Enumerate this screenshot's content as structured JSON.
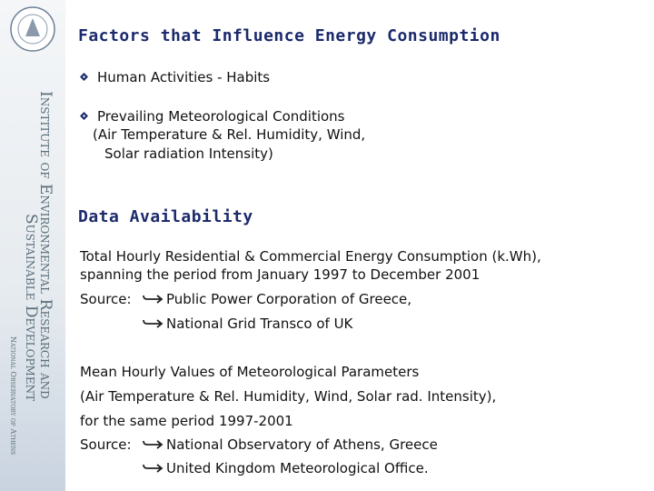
{
  "sidebar": {
    "institute_line1": "Institute of Environmental Research and",
    "institute_line2": "Sustainable Development",
    "observatory": "National Observatory of Athens"
  },
  "title": "Factors that Influence Energy Consumption",
  "factors": [
    {
      "lines": [
        "Human Activities - Habits"
      ]
    },
    {
      "lines": [
        "Prevailing Meteorological Conditions",
        "(Air Temperature & Rel. Humidity, Wind,",
        "Solar radiation Intensity)"
      ]
    }
  ],
  "section_title": "Data Availability",
  "blocks": [
    {
      "lines": [
        "Total Hourly Residential & Commercial Energy Consumption (k.Wh),",
        "spanning the period from January 1997 to December 2001"
      ],
      "source_label": "Source:",
      "sources": [
        "Public Power Corporation of Greece,",
        "National Grid Transco of UK"
      ]
    },
    {
      "lines": [
        "Mean Hourly Values of Meteorological Parameters",
        "(Air Temperature & Rel. Humidity, Wind, Solar rad. Intensity),",
        "for the same period 1997-2001"
      ],
      "source_label": "Source:",
      "sources": [
        "National Observatory of Athens, Greece",
        "United Kingdom Meteorological Office."
      ]
    }
  ]
}
